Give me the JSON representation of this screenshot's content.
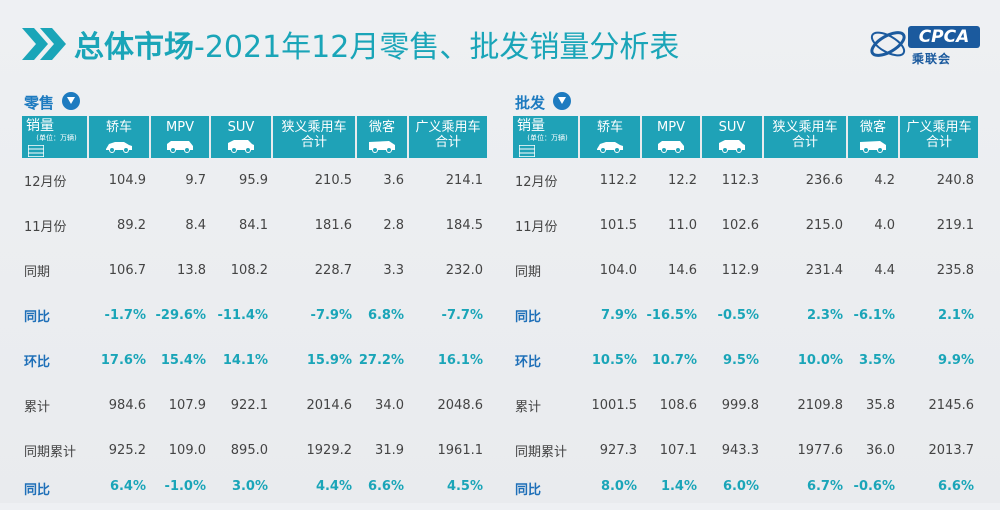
{
  "header": {
    "title_bold": "总体市场",
    "title_rest": "-2021年12月零售、批发销量分析表",
    "logo_text": "CPCA",
    "logo_cn": "乘联会",
    "logo_small": "CPCA"
  },
  "columns": {
    "first": "销量",
    "first_sub": "(单位：万辆)",
    "c1": "轿车",
    "c2": "MPV",
    "c3": "SUV",
    "c4a": "狭义乘用车",
    "c4b": "合计",
    "c5": "微客",
    "c6a": "广义乘用车",
    "c6b": "合计"
  },
  "retail": {
    "label": "零售",
    "rows": [
      {
        "label": "12月份",
        "v": [
          "104.9",
          "9.7",
          "95.9",
          "210.5",
          "3.6",
          "214.1"
        ]
      },
      {
        "label": "11月份",
        "v": [
          "89.2",
          "8.4",
          "84.1",
          "181.6",
          "2.8",
          "184.5"
        ]
      },
      {
        "label": "同期",
        "v": [
          "106.7",
          "13.8",
          "108.2",
          "228.7",
          "3.3",
          "232.0"
        ]
      },
      {
        "label": "同比",
        "v": [
          "-1.7%",
          "-29.6%",
          "-11.4%",
          "-7.9%",
          "6.8%",
          "-7.7%"
        ]
      },
      {
        "label": "环比",
        "v": [
          "17.6%",
          "15.4%",
          "14.1%",
          "15.9%",
          "27.2%",
          "16.1%"
        ]
      },
      {
        "label": "累计",
        "v": [
          "984.6",
          "107.9",
          "922.1",
          "2014.6",
          "34.0",
          "2048.6"
        ]
      },
      {
        "label": "同期累计",
        "v": [
          "925.2",
          "109.0",
          "895.0",
          "1929.2",
          "31.9",
          "1961.1"
        ]
      },
      {
        "label": "同比",
        "v": [
          "6.4%",
          "-1.0%",
          "3.0%",
          "4.4%",
          "6.6%",
          "4.5%"
        ]
      }
    ]
  },
  "wholesale": {
    "label": "批发",
    "rows": [
      {
        "label": "12月份",
        "v": [
          "112.2",
          "12.2",
          "112.3",
          "236.6",
          "4.2",
          "240.8"
        ]
      },
      {
        "label": "11月份",
        "v": [
          "101.5",
          "11.0",
          "102.6",
          "215.0",
          "4.0",
          "219.1"
        ]
      },
      {
        "label": "同期",
        "v": [
          "104.0",
          "14.6",
          "112.9",
          "231.4",
          "4.4",
          "235.8"
        ]
      },
      {
        "label": "同比",
        "v": [
          "7.9%",
          "-16.5%",
          "-0.5%",
          "2.3%",
          "-6.1%",
          "2.1%"
        ]
      },
      {
        "label": "环比",
        "v": [
          "10.5%",
          "10.7%",
          "9.5%",
          "10.0%",
          "3.5%",
          "9.9%"
        ]
      },
      {
        "label": "累计",
        "v": [
          "1001.5",
          "108.6",
          "999.8",
          "2109.8",
          "35.8",
          "2145.6"
        ]
      },
      {
        "label": "同期累计",
        "v": [
          "927.3",
          "107.1",
          "943.3",
          "1977.6",
          "36.0",
          "2013.7"
        ]
      },
      {
        "label": "同比",
        "v": [
          "8.0%",
          "1.4%",
          "6.0%",
          "6.7%",
          "-0.6%",
          "6.6%"
        ]
      }
    ]
  },
  "colors": {
    "accent": "#1fa2b7",
    "title": "#1aa5b8",
    "label_blue": "#1e7bc0"
  }
}
